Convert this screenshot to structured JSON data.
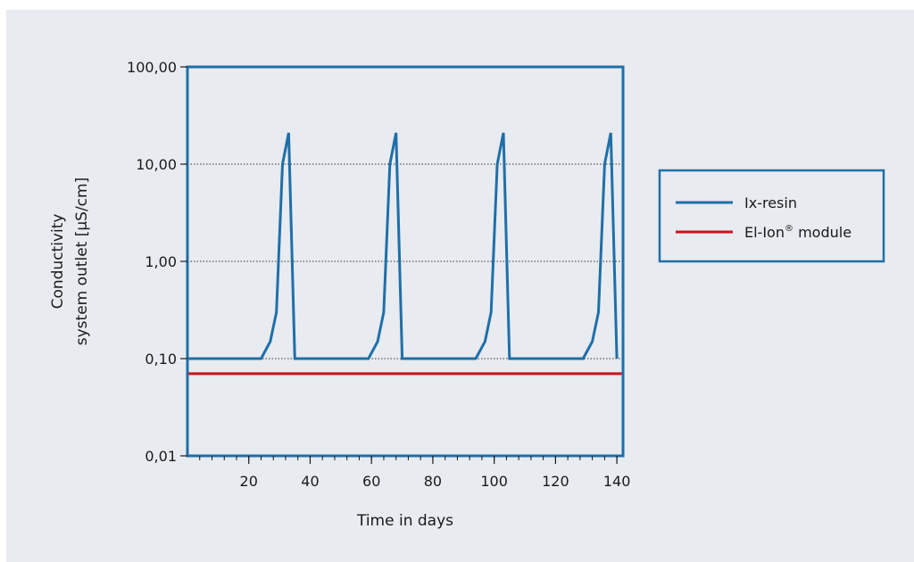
{
  "colors": {
    "background": "#e8ebef",
    "frame": "#1f6fa8",
    "series_ix": "#1f6fa8",
    "series_elion": "#d0101b",
    "gridline": "#333333"
  },
  "chart_data": {
    "type": "line",
    "title": "",
    "xlabel": "Time in days",
    "ylabel_line1": "Conductivity",
    "ylabel_line2": "system outlet [µS/cm]",
    "y_scale": "log",
    "xlim": [
      0,
      142
    ],
    "ylim": [
      0.01,
      100
    ],
    "x_ticks": [
      {
        "value": 20,
        "label": "20"
      },
      {
        "value": 40,
        "label": "40"
      },
      {
        "value": 60,
        "label": "60"
      },
      {
        "value": 80,
        "label": "80"
      },
      {
        "value": 100,
        "label": "100"
      },
      {
        "value": 120,
        "label": "120"
      },
      {
        "value": 140,
        "label": "140"
      }
    ],
    "x_minor_step": 4,
    "y_ticks": [
      {
        "value": 100,
        "label": "100,00"
      },
      {
        "value": 10,
        "label": "10,00"
      },
      {
        "value": 1,
        "label": "1,00"
      },
      {
        "value": 0.1,
        "label": "0,10"
      },
      {
        "value": 0.01,
        "label": "0,01"
      }
    ],
    "grid": "horizontal dotted",
    "legend_position": "right",
    "series": [
      {
        "name": "Ix-resin",
        "color": "#1f6fa8",
        "points": [
          [
            0,
            0.1
          ],
          [
            24,
            0.1
          ],
          [
            27,
            0.15
          ],
          [
            29,
            0.3
          ],
          [
            31,
            10
          ],
          [
            33,
            21
          ],
          [
            35,
            0.1
          ],
          [
            59,
            0.1
          ],
          [
            62,
            0.15
          ],
          [
            64,
            0.3
          ],
          [
            66,
            10
          ],
          [
            68,
            21
          ],
          [
            70,
            0.1
          ],
          [
            94,
            0.1
          ],
          [
            97,
            0.15
          ],
          [
            99,
            0.3
          ],
          [
            101,
            10
          ],
          [
            103,
            21
          ],
          [
            105,
            0.1
          ],
          [
            129,
            0.1
          ],
          [
            132,
            0.15
          ],
          [
            134,
            0.3
          ],
          [
            136,
            10
          ],
          [
            138,
            21
          ],
          [
            140,
            0.1
          ]
        ]
      },
      {
        "name": "El-Ion",
        "name_sup": "®",
        "name_suffix": " module",
        "color": "#d0101b",
        "points": [
          [
            0,
            0.07
          ],
          [
            142,
            0.07
          ]
        ]
      }
    ]
  }
}
